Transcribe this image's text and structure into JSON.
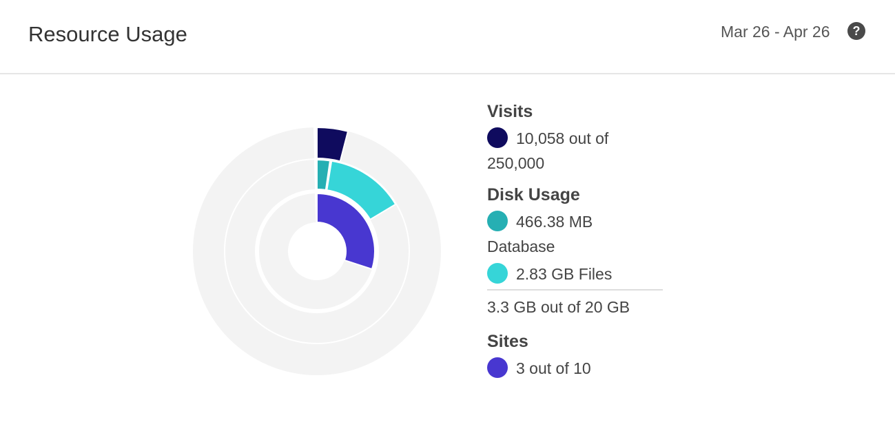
{
  "header": {
    "title": "Resource Usage",
    "date_range": "Mar 26 - Apr 26",
    "help_icon": "question-circle-icon"
  },
  "legend": {
    "visits": {
      "title": "Visits",
      "text": "10,058 out of 250,000",
      "color": "#0f0b5e"
    },
    "disk": {
      "title": "Disk Usage",
      "database": "466.38 MB Database",
      "database_color": "#26afb3",
      "files": "2.83 GB Files",
      "files_color": "#36d5d8",
      "total": "3.3 GB out of 20 GB"
    },
    "sites": {
      "title": "Sites",
      "text": "3 out of 10",
      "color": "#4837d0"
    }
  },
  "chart_data": {
    "type": "pie",
    "rings": [
      {
        "name": "Visits",
        "segments": [
          {
            "label": "Visits",
            "fraction": 0.04023,
            "color": "#0f0b5e"
          }
        ]
      },
      {
        "name": "Disk Usage",
        "segments": [
          {
            "label": "Database",
            "fraction": 0.0228,
            "color": "#26afb3"
          },
          {
            "label": "Files",
            "fraction": 0.1415,
            "color": "#36d5d8"
          }
        ]
      },
      {
        "name": "Sites",
        "segments": [
          {
            "label": "Sites",
            "fraction": 0.3,
            "color": "#4837d0"
          }
        ]
      }
    ],
    "track_color": "#f3f3f3"
  }
}
